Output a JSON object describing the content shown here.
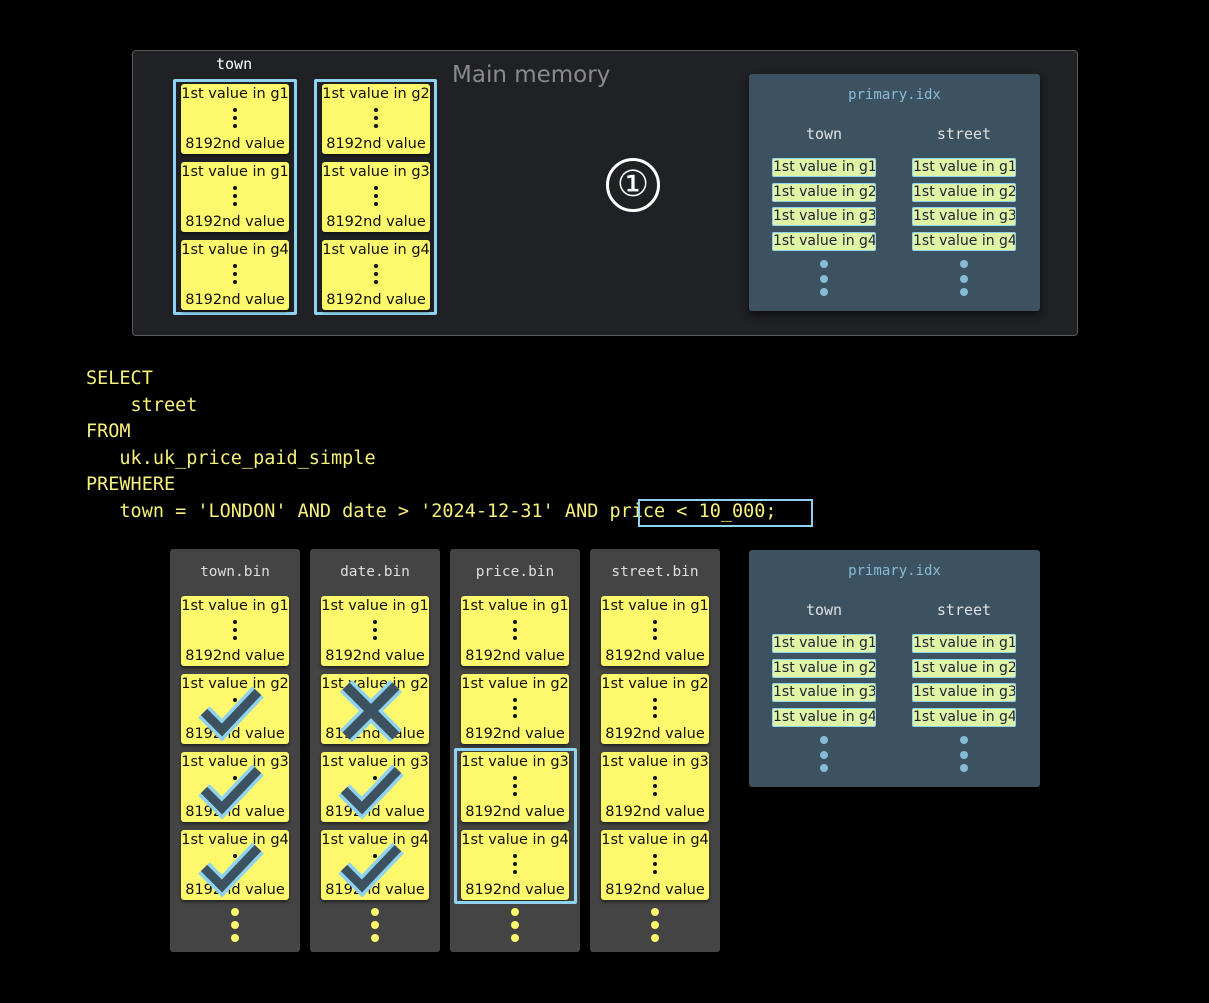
{
  "main_memory": {
    "label": "Main memory",
    "column_label": "town",
    "columns": [
      [
        "1st value in g1",
        "1st value in g1",
        "1st value in g4"
      ],
      [
        "1st value in g2",
        "1st value in g3",
        "1st value in g4"
      ]
    ],
    "granule_last": "8192nd value",
    "step_marker": "①"
  },
  "primary_idx": {
    "title": "primary.idx",
    "columns": [
      "town",
      "street"
    ],
    "entries": [
      "1st value in g1",
      "1st value in g2",
      "1st value in g3",
      "1st value in g4"
    ]
  },
  "query": {
    "lines": [
      "SELECT",
      "    street",
      "FROM",
      "   uk.uk_price_paid_simple",
      "PREWHERE",
      "   town = 'LONDON' AND date > '2024-12-31' AND "
    ],
    "highlight": "price < 10_000",
    "end": ";"
  },
  "files": [
    {
      "name": "town.bin",
      "marks": [
        "",
        "check",
        "check",
        "check"
      ]
    },
    {
      "name": "date.bin",
      "marks": [
        "",
        "cross",
        "check",
        "check"
      ]
    },
    {
      "name": "price.bin",
      "marks": [
        "",
        "",
        "",
        ""
      ],
      "selected": [
        2,
        3
      ]
    },
    {
      "name": "street.bin",
      "marks": [
        "",
        "",
        "",
        ""
      ]
    }
  ],
  "granules": [
    "1st value in g1",
    "1st value in g2",
    "1st value in g3",
    "1st value in g4"
  ],
  "colors": {
    "granule": "#fdf86c",
    "highlight": "#8fd3f0",
    "index_bg": "#3c5261",
    "query": "#f6f07c"
  }
}
